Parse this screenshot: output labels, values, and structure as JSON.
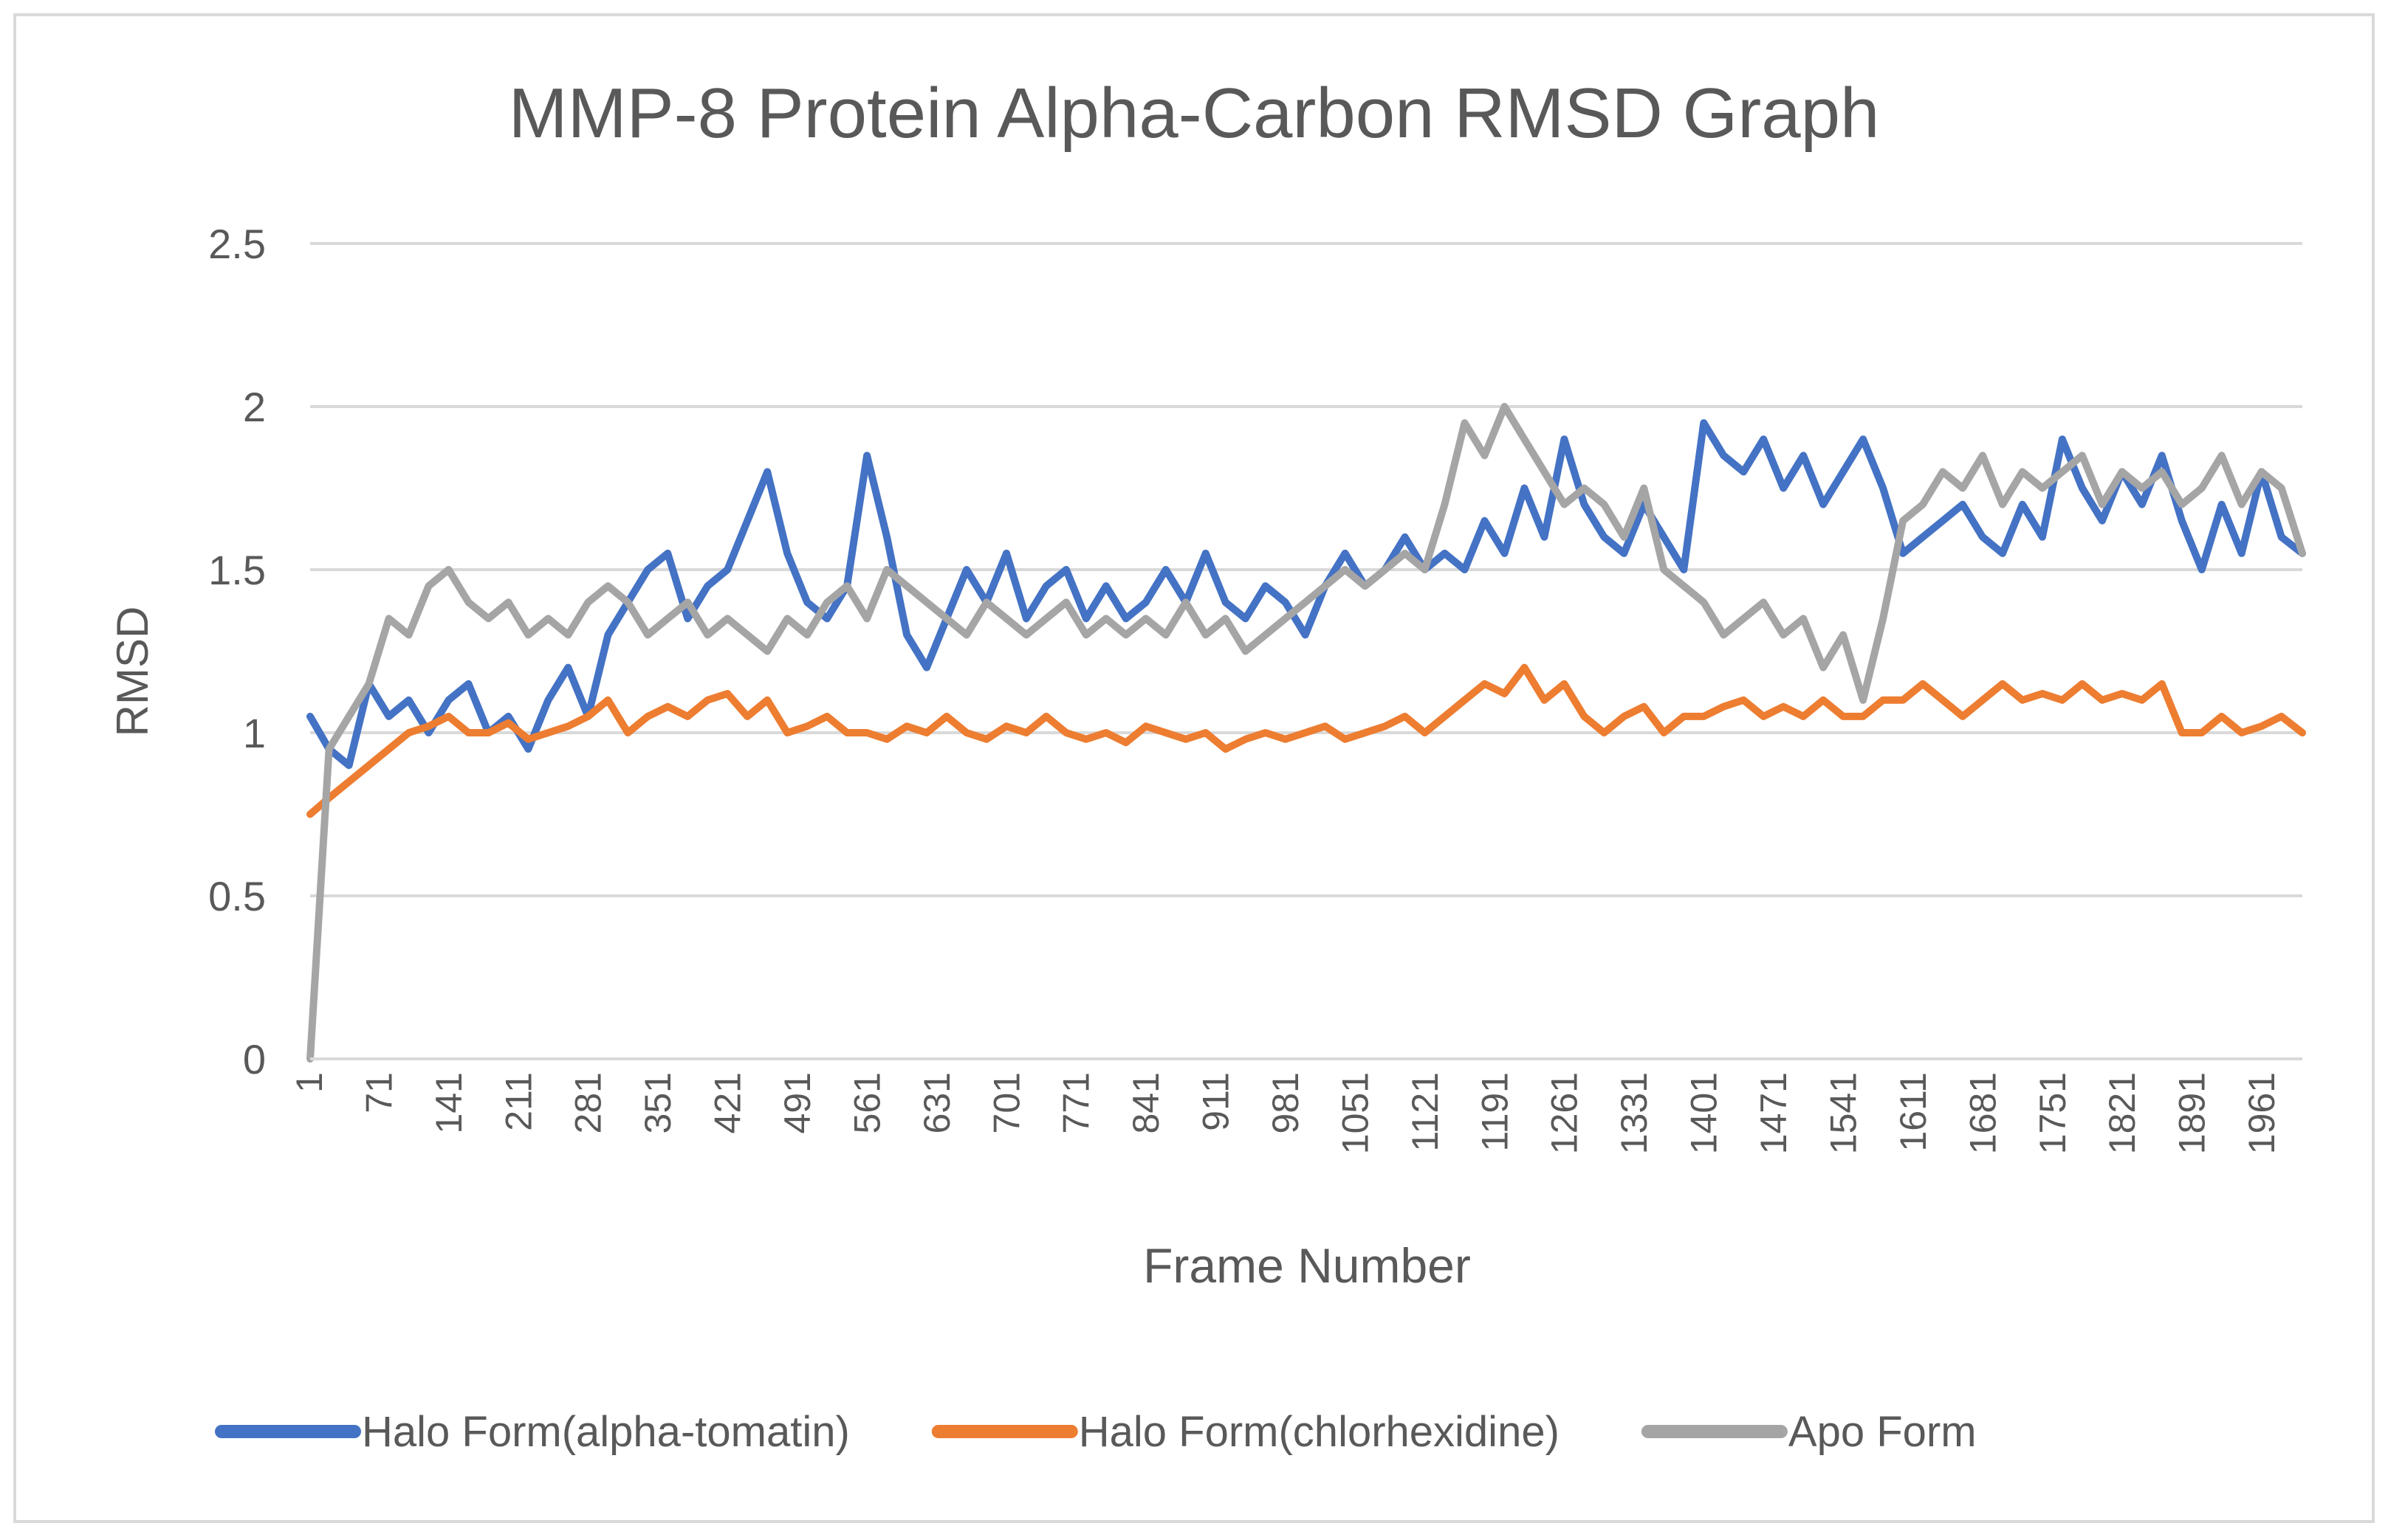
{
  "chart_data": {
    "type": "line",
    "title": "MMP-8 Protein Alpha-Carbon RMSD Graph",
    "xlabel": "Frame Number",
    "ylabel": "RMSD",
    "ylim": [
      0,
      2.5
    ],
    "yticks": [
      "0",
      "0.5",
      "1",
      "1.5",
      "2",
      "2.5"
    ],
    "ytick_values": [
      0,
      0.5,
      1,
      1.5,
      2,
      2.5
    ],
    "x_range": [
      1,
      2001
    ],
    "xticks": [
      "1",
      "71",
      "141",
      "211",
      "281",
      "351",
      "421",
      "491",
      "561",
      "631",
      "701",
      "771",
      "841",
      "911",
      "981",
      "1051",
      "1121",
      "1191",
      "1261",
      "1331",
      "1401",
      "1471",
      "1541",
      "1611",
      "1681",
      "1751",
      "1821",
      "1891",
      "1961"
    ],
    "grid": true,
    "legend_position": "bottom",
    "series": [
      {
        "name": "Halo Form(alpha-tomatin)",
        "color": "#4472C4",
        "x": [
          1,
          20,
          40,
          60,
          80,
          100,
          120,
          140,
          160,
          180,
          200,
          220,
          240,
          260,
          280,
          300,
          320,
          340,
          360,
          380,
          400,
          420,
          440,
          460,
          480,
          500,
          520,
          540,
          560,
          580,
          600,
          620,
          640,
          660,
          680,
          700,
          720,
          740,
          760,
          780,
          800,
          820,
          840,
          860,
          880,
          900,
          920,
          940,
          960,
          980,
          1000,
          1020,
          1040,
          1060,
          1080,
          1100,
          1120,
          1140,
          1160,
          1180,
          1200,
          1220,
          1240,
          1260,
          1280,
          1300,
          1320,
          1340,
          1360,
          1380,
          1400,
          1420,
          1440,
          1460,
          1480,
          1500,
          1520,
          1540,
          1560,
          1580,
          1600,
          1620,
          1640,
          1660,
          1680,
          1700,
          1720,
          1740,
          1760,
          1780,
          1800,
          1820,
          1840,
          1860,
          1880,
          1900,
          1920,
          1940,
          1960,
          1980,
          2001
        ],
        "y": [
          1.05,
          0.95,
          0.9,
          1.15,
          1.05,
          1.1,
          1.0,
          1.1,
          1.15,
          1.0,
          1.05,
          0.95,
          1.1,
          1.2,
          1.05,
          1.3,
          1.4,
          1.5,
          1.55,
          1.35,
          1.45,
          1.5,
          1.65,
          1.8,
          1.55,
          1.4,
          1.35,
          1.45,
          1.85,
          1.6,
          1.3,
          1.2,
          1.35,
          1.5,
          1.4,
          1.55,
          1.35,
          1.45,
          1.5,
          1.35,
          1.45,
          1.35,
          1.4,
          1.5,
          1.4,
          1.55,
          1.4,
          1.35,
          1.45,
          1.4,
          1.3,
          1.45,
          1.55,
          1.45,
          1.5,
          1.6,
          1.5,
          1.55,
          1.5,
          1.65,
          1.55,
          1.75,
          1.6,
          1.9,
          1.7,
          1.6,
          1.55,
          1.7,
          1.6,
          1.5,
          1.95,
          1.85,
          1.8,
          1.9,
          1.75,
          1.85,
          1.7,
          1.8,
          1.9,
          1.75,
          1.55,
          1.6,
          1.65,
          1.7,
          1.6,
          1.55,
          1.7,
          1.6,
          1.9,
          1.75,
          1.65,
          1.8,
          1.7,
          1.85,
          1.65,
          1.5,
          1.7,
          1.55,
          1.8,
          1.6,
          1.55
        ]
      },
      {
        "name": "Halo Form(chlorhexidine)",
        "color": "#ED7D31",
        "x": [
          1,
          20,
          40,
          60,
          80,
          100,
          120,
          140,
          160,
          180,
          200,
          220,
          240,
          260,
          280,
          300,
          320,
          340,
          360,
          380,
          400,
          420,
          440,
          460,
          480,
          500,
          520,
          540,
          560,
          580,
          600,
          620,
          640,
          660,
          680,
          700,
          720,
          740,
          760,
          780,
          800,
          820,
          840,
          860,
          880,
          900,
          920,
          940,
          960,
          980,
          1000,
          1020,
          1040,
          1060,
          1080,
          1100,
          1120,
          1140,
          1160,
          1180,
          1200,
          1220,
          1240,
          1260,
          1280,
          1300,
          1320,
          1340,
          1360,
          1380,
          1400,
          1420,
          1440,
          1460,
          1480,
          1500,
          1520,
          1540,
          1560,
          1580,
          1600,
          1620,
          1640,
          1660,
          1680,
          1700,
          1720,
          1740,
          1760,
          1780,
          1800,
          1820,
          1840,
          1860,
          1880,
          1900,
          1920,
          1940,
          1960,
          1980,
          2001
        ],
        "y": [
          0.75,
          0.8,
          0.85,
          0.9,
          0.95,
          1.0,
          1.02,
          1.05,
          1.0,
          1.0,
          1.03,
          0.98,
          1.0,
          1.02,
          1.05,
          1.1,
          1.0,
          1.05,
          1.08,
          1.05,
          1.1,
          1.12,
          1.05,
          1.1,
          1.0,
          1.02,
          1.05,
          1.0,
          1.0,
          0.98,
          1.02,
          1.0,
          1.05,
          1.0,
          0.98,
          1.02,
          1.0,
          1.05,
          1.0,
          0.98,
          1.0,
          0.97,
          1.02,
          1.0,
          0.98,
          1.0,
          0.95,
          0.98,
          1.0,
          0.98,
          1.0,
          1.02,
          0.98,
          1.0,
          1.02,
          1.05,
          1.0,
          1.05,
          1.1,
          1.15,
          1.12,
          1.2,
          1.1,
          1.15,
          1.05,
          1.0,
          1.05,
          1.08,
          1.0,
          1.05,
          1.05,
          1.08,
          1.1,
          1.05,
          1.08,
          1.05,
          1.1,
          1.05,
          1.05,
          1.1,
          1.1,
          1.15,
          1.1,
          1.05,
          1.1,
          1.15,
          1.1,
          1.12,
          1.1,
          1.15,
          1.1,
          1.12,
          1.1,
          1.15,
          1.0,
          1.0,
          1.05,
          1.0,
          1.02,
          1.05,
          1.0
        ]
      },
      {
        "name": "Apo Form",
        "color": "#A5A5A5",
        "x": [
          1,
          20,
          40,
          60,
          80,
          100,
          120,
          140,
          160,
          180,
          200,
          220,
          240,
          260,
          280,
          300,
          320,
          340,
          360,
          380,
          400,
          420,
          440,
          460,
          480,
          500,
          520,
          540,
          560,
          580,
          600,
          620,
          640,
          660,
          680,
          700,
          720,
          740,
          760,
          780,
          800,
          820,
          840,
          860,
          880,
          900,
          920,
          940,
          960,
          980,
          1000,
          1020,
          1040,
          1060,
          1080,
          1100,
          1120,
          1140,
          1160,
          1180,
          1200,
          1220,
          1240,
          1260,
          1280,
          1300,
          1320,
          1340,
          1360,
          1380,
          1400,
          1420,
          1440,
          1460,
          1480,
          1500,
          1520,
          1540,
          1560,
          1580,
          1600,
          1620,
          1640,
          1660,
          1680,
          1700,
          1720,
          1740,
          1760,
          1780,
          1800,
          1820,
          1840,
          1860,
          1880,
          1900,
          1920,
          1940,
          1960,
          1980,
          2001
        ],
        "y": [
          0.0,
          0.95,
          1.05,
          1.15,
          1.35,
          1.3,
          1.45,
          1.5,
          1.4,
          1.35,
          1.4,
          1.3,
          1.35,
          1.3,
          1.4,
          1.45,
          1.4,
          1.3,
          1.35,
          1.4,
          1.3,
          1.35,
          1.3,
          1.25,
          1.35,
          1.3,
          1.4,
          1.45,
          1.35,
          1.5,
          1.45,
          1.4,
          1.35,
          1.3,
          1.4,
          1.35,
          1.3,
          1.35,
          1.4,
          1.3,
          1.35,
          1.3,
          1.35,
          1.3,
          1.4,
          1.3,
          1.35,
          1.25,
          1.3,
          1.35,
          1.4,
          1.45,
          1.5,
          1.45,
          1.5,
          1.55,
          1.5,
          1.7,
          1.95,
          1.85,
          2.0,
          1.9,
          1.8,
          1.7,
          1.75,
          1.7,
          1.6,
          1.75,
          1.5,
          1.45,
          1.4,
          1.3,
          1.35,
          1.4,
          1.3,
          1.35,
          1.2,
          1.3,
          1.1,
          1.35,
          1.65,
          1.7,
          1.8,
          1.75,
          1.85,
          1.7,
          1.8,
          1.75,
          1.8,
          1.85,
          1.7,
          1.8,
          1.75,
          1.8,
          1.7,
          1.75,
          1.85,
          1.7,
          1.8,
          1.75,
          1.55
        ]
      }
    ]
  }
}
